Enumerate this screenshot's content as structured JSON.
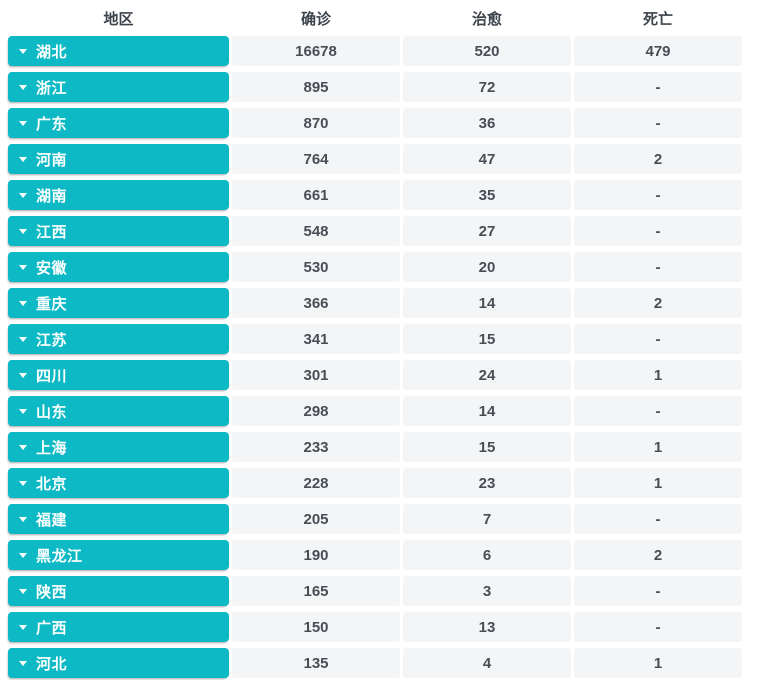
{
  "colors": {
    "accent_teal": "#0db9c5",
    "cell_background": "#f4f5f6",
    "header_text": "#3d444c",
    "value_text": "#474e56"
  },
  "table": {
    "columns": [
      {
        "label": "地区"
      },
      {
        "label": "确诊"
      },
      {
        "label": "治愈"
      },
      {
        "label": "死亡"
      }
    ],
    "rows": [
      {
        "region": "湖北",
        "confirmed": "16678",
        "cured": "520",
        "dead": "479"
      },
      {
        "region": "浙江",
        "confirmed": "895",
        "cured": "72",
        "dead": "-"
      },
      {
        "region": "广东",
        "confirmed": "870",
        "cured": "36",
        "dead": "-"
      },
      {
        "region": "河南",
        "confirmed": "764",
        "cured": "47",
        "dead": "2"
      },
      {
        "region": "湖南",
        "confirmed": "661",
        "cured": "35",
        "dead": "-"
      },
      {
        "region": "江西",
        "confirmed": "548",
        "cured": "27",
        "dead": "-"
      },
      {
        "region": "安徽",
        "confirmed": "530",
        "cured": "20",
        "dead": "-"
      },
      {
        "region": "重庆",
        "confirmed": "366",
        "cured": "14",
        "dead": "2"
      },
      {
        "region": "江苏",
        "confirmed": "341",
        "cured": "15",
        "dead": "-"
      },
      {
        "region": "四川",
        "confirmed": "301",
        "cured": "24",
        "dead": "1"
      },
      {
        "region": "山东",
        "confirmed": "298",
        "cured": "14",
        "dead": "-"
      },
      {
        "region": "上海",
        "confirmed": "233",
        "cured": "15",
        "dead": "1"
      },
      {
        "region": "北京",
        "confirmed": "228",
        "cured": "23",
        "dead": "1"
      },
      {
        "region": "福建",
        "confirmed": "205",
        "cured": "7",
        "dead": "-"
      },
      {
        "region": "黑龙江",
        "confirmed": "190",
        "cured": "6",
        "dead": "2"
      },
      {
        "region": "陕西",
        "confirmed": "165",
        "cured": "3",
        "dead": "-"
      },
      {
        "region": "广西",
        "confirmed": "150",
        "cured": "13",
        "dead": "-"
      },
      {
        "region": "河北",
        "confirmed": "135",
        "cured": "4",
        "dead": "1"
      }
    ]
  }
}
